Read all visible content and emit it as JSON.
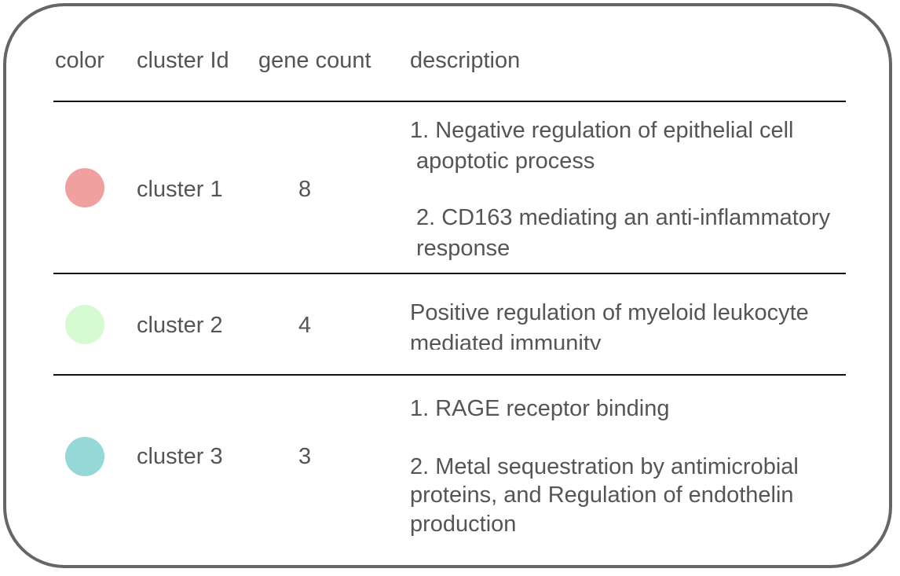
{
  "colors": {
    "cluster1": "#f0a09f",
    "cluster2": "#d6fbd2",
    "cluster3": "#95d8d8"
  },
  "header": {
    "color": "color",
    "cluster_id": "cluster Id",
    "gene_count": "gene count",
    "description": "description"
  },
  "rows": [
    {
      "color_name": "salmon",
      "cluster": "cluster 1",
      "count": "8",
      "description": [
        "1. Negative regulation of epithelial cell",
        " apoptotic process",
        "2. CD163 mediating an anti-inflammatory",
        "response"
      ]
    },
    {
      "color_name": "light-green",
      "cluster": "cluster 2",
      "count": "4",
      "description": [
        "Positive regulation of myeloid leukocyte",
        "mediated immunity"
      ]
    },
    {
      "color_name": "teal",
      "cluster": "cluster 3",
      "count": "3",
      "description": [
        "1. RAGE receptor binding",
        "2. Metal sequestration by antimicrobial",
        "proteins, and Regulation of endothelin",
        "production"
      ]
    }
  ]
}
